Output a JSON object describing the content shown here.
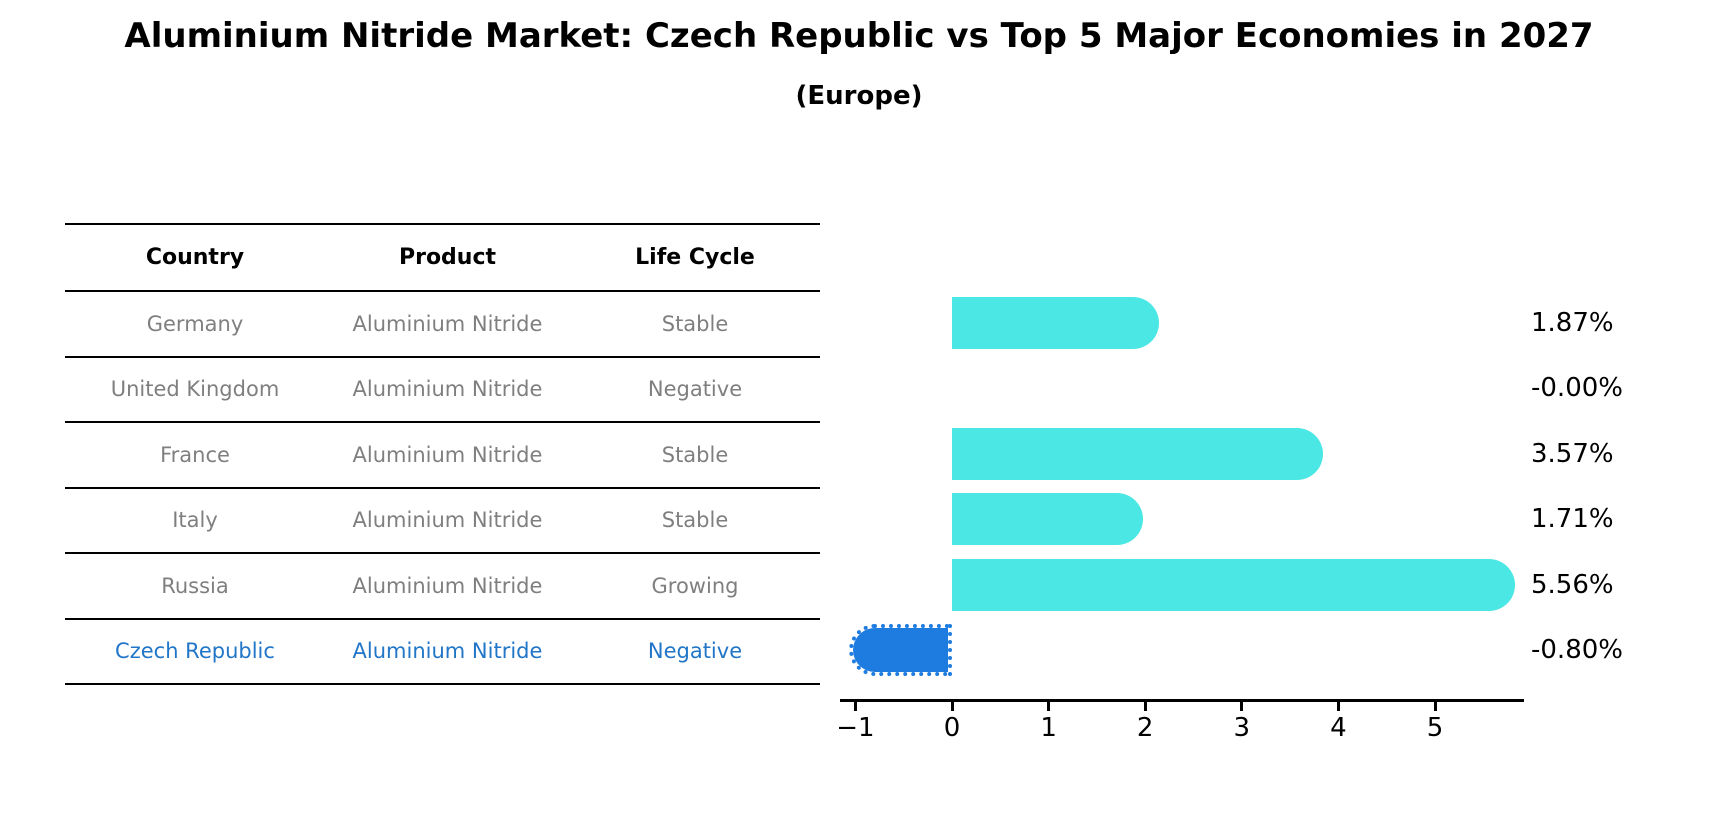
{
  "title": "Aluminium Nitride Market: Czech Republic vs Top 5 Major Economies in 2027",
  "subtitle": "(Europe)",
  "table": {
    "headers": [
      "Country",
      "Product",
      "Life Cycle"
    ],
    "rows": [
      {
        "country": "Germany",
        "product": "Aluminium Nitride",
        "life_cycle": "Stable",
        "highlighted": false
      },
      {
        "country": "United Kingdom",
        "product": "Aluminium Nitride",
        "life_cycle": "Negative",
        "highlighted": false
      },
      {
        "country": "France",
        "product": "Aluminium Nitride",
        "life_cycle": "Stable",
        "highlighted": false
      },
      {
        "country": "Italy",
        "product": "Aluminium Nitride",
        "life_cycle": "Stable",
        "highlighted": false
      },
      {
        "country": "Russia",
        "product": "Aluminium Nitride",
        "life_cycle": "Growing",
        "highlighted": false
      },
      {
        "country": "Czech Republic",
        "product": "Aluminium Nitride",
        "life_cycle": "Negative",
        "highlighted": true
      }
    ]
  },
  "chart_data": {
    "type": "bar",
    "orientation": "horizontal",
    "title": "Aluminium Nitride Market: Czech Republic vs Top 5 Major Economies in 2027",
    "subtitle": "(Europe)",
    "categories": [
      "Germany",
      "United Kingdom",
      "France",
      "Italy",
      "Russia",
      "Czech Republic"
    ],
    "values": [
      1.87,
      -0.0,
      3.57,
      1.71,
      5.56,
      -0.8
    ],
    "value_labels": [
      "1.87%",
      "-0.00%",
      "3.57%",
      "1.71%",
      "5.56%",
      "-0.80%"
    ],
    "x_tick_labels": [
      "−1",
      "0",
      "1",
      "2",
      "3",
      "4",
      "5"
    ],
    "x_tick_values": [
      -1,
      0,
      1,
      2,
      3,
      4,
      5
    ],
    "xlim": [
      -1.16,
      5.92
    ],
    "grid": false,
    "legend": "none",
    "highlight_index": 5,
    "highlight_edge_style": "dotted"
  },
  "colors": {
    "bar_color": "#4AE7E4",
    "highlight_bar_color": "#1E7BE0",
    "highlight_text_color": "#2176C8",
    "table_text_color": "#7f7f7f",
    "header_text_color": "#000000",
    "line_color": "#000000"
  }
}
